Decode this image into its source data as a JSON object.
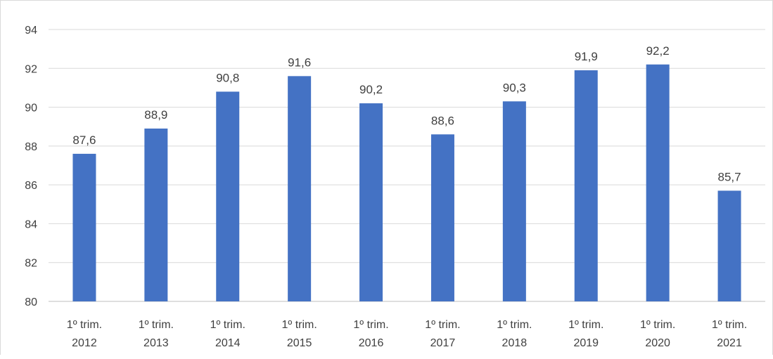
{
  "chart_data": {
    "type": "bar",
    "title": "",
    "xlabel": "",
    "ylabel": "",
    "ylim": [
      80,
      94
    ],
    "yticks": [
      80,
      82,
      84,
      86,
      88,
      90,
      92,
      94
    ],
    "ytick_labels": [
      "80",
      "82",
      "84",
      "86",
      "88",
      "90",
      "92",
      "94"
    ],
    "grid": true,
    "legend": "none",
    "bar_color": "#4472C4",
    "categories": [
      [
        "1º trim.",
        "2012"
      ],
      [
        "1º trim.",
        "2013"
      ],
      [
        "1º trim.",
        "2014"
      ],
      [
        "1º trim.",
        "2015"
      ],
      [
        "1º trim.",
        "2016"
      ],
      [
        "1º trim.",
        "2017"
      ],
      [
        "1º trim.",
        "2018"
      ],
      [
        "1º trim.",
        "2019"
      ],
      [
        "1º trim.",
        "2020"
      ],
      [
        "1º trim.",
        "2021"
      ]
    ],
    "values": [
      87.6,
      88.9,
      90.8,
      91.6,
      90.2,
      88.6,
      90.3,
      91.9,
      92.2,
      85.7
    ],
    "value_labels": [
      "87,6",
      "88,9",
      "90,8",
      "91,6",
      "90,2",
      "88,6",
      "90,3",
      "91,9",
      "92,2",
      "85,7"
    ]
  }
}
